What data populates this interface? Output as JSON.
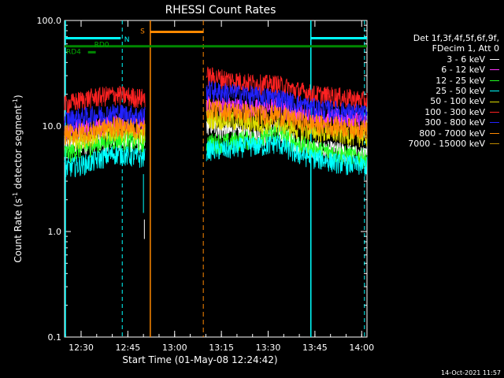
{
  "chart_data": {
    "type": "line",
    "title": "RHESSI Count Rates",
    "xlabel": "Start Time (01-May-08 12:24:42)",
    "ylabel_main": "Count Rate (s",
    "ylabel_sup1": "-1",
    "ylabel_mid": " detector segment",
    "ylabel_sup2": "-1",
    "ylabel_end": ")",
    "x_unit": "minutes after 12:24:42",
    "xlim": [
      0,
      97
    ],
    "yscale": "log",
    "ylim": [
      0.1,
      100
    ],
    "x_ticks": [
      {
        "label": "12:30",
        "value": 5.3
      },
      {
        "label": "12:45",
        "value": 20.3
      },
      {
        "label": "13:00",
        "value": 35.3
      },
      {
        "label": "13:15",
        "value": 50.3
      },
      {
        "label": "13:30",
        "value": 65.3
      },
      {
        "label": "13:45",
        "value": 80.3
      },
      {
        "label": "14:00",
        "value": 95.3
      }
    ],
    "y_ticks": [
      {
        "label": "100.0",
        "value": 100
      },
      {
        "label": "10.0",
        "value": 10
      },
      {
        "label": "1.0",
        "value": 1
      },
      {
        "label": "0.1",
        "value": 0.1
      }
    ],
    "legend_header": [
      "Det 1f,3f,4f,5f,6f,9f,",
      "FDecim 1, Att 0"
    ],
    "series": [
      {
        "name": "3 - 6 keV",
        "color": "#ffffff",
        "shape": [
          6.5,
          7.0,
          7.5,
          7.0,
          0,
          10.5,
          9.0,
          8.5,
          8.0,
          9.5,
          7.0,
          6.0,
          5.8,
          5.2
        ]
      },
      {
        "name": "6 - 12 keV",
        "color": "#ff33ff",
        "shape": [
          9.5,
          10.0,
          10.5,
          10.0,
          0,
          16.0,
          15.5,
          15.0,
          14.5,
          15.5,
          13.5,
          12.5,
          12.0,
          11.5
        ]
      },
      {
        "name": "12 - 25 keV",
        "color": "#22ff22",
        "shape": [
          5.5,
          6.5,
          7.5,
          7.0,
          0,
          7.0,
          7.0,
          7.5,
          7.5,
          9.0,
          7.0,
          6.0,
          5.5,
          5.0
        ]
      },
      {
        "name": "25 - 50 keV",
        "color": "#00ffff",
        "shape": [
          4.0,
          4.5,
          5.5,
          5.0,
          0,
          6.0,
          6.0,
          6.5,
          6.5,
          7.0,
          5.5,
          5.0,
          4.5,
          4.2
        ]
      },
      {
        "name": "50 - 100 keV",
        "color": "#dddd00",
        "shape": [
          7.5,
          8.0,
          9.0,
          8.5,
          0,
          12.0,
          11.5,
          11.0,
          10.5,
          11.0,
          9.5,
          9.0,
          8.5,
          8.0
        ]
      },
      {
        "name": "100 - 300 keV",
        "color": "#ff2222",
        "shape": [
          16.0,
          18.5,
          20.0,
          18.5,
          0,
          30.0,
          28.0,
          26.0,
          25.0,
          25.0,
          22.0,
          20.0,
          19.0,
          17.5
        ]
      },
      {
        "name": "300 - 800 keV",
        "color": "#2222ff",
        "shape": [
          11.5,
          12.5,
          13.5,
          12.5,
          0,
          22.0,
          21.0,
          20.0,
          19.0,
          19.0,
          16.5,
          15.0,
          14.0,
          13.0
        ]
      },
      {
        "name": "800 - 7000 keV",
        "color": "#ff8800",
        "shape": [
          8.5,
          9.0,
          10.0,
          9.5,
          0,
          15.0,
          14.0,
          13.5,
          13.0,
          13.0,
          11.5,
          10.5,
          10.0,
          9.5
        ]
      },
      {
        "name": "7000 - 15000 keV",
        "color": "#bb8800",
        "shape": []
      }
    ],
    "shape_x": [
      0,
      8,
      16,
      25,
      0,
      46,
      52,
      58,
      64,
      68,
      74,
      80,
      88,
      96
    ],
    "gap": [
      25.8,
      45.5
    ],
    "flag_labels": {
      "n": "N",
      "s": "S",
      "rd0": "RD0",
      "rd4": "RD4"
    },
    "footer_date": "14-Oct-2021 11:57"
  }
}
